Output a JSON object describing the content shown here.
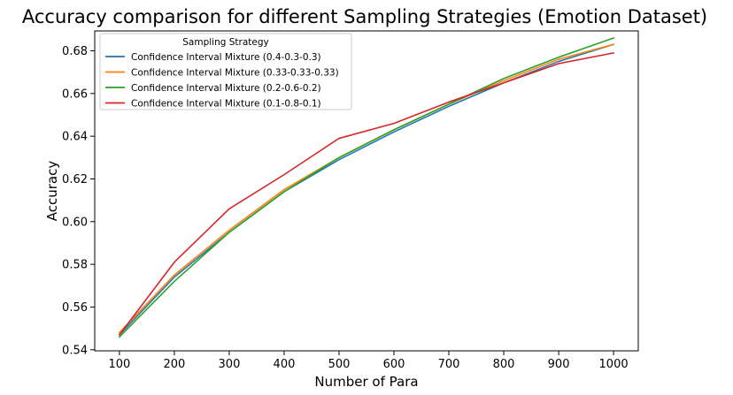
{
  "chart_data": {
    "type": "line",
    "title": "Accuracy comparison for different Sampling Strategies (Emotion Dataset)",
    "xlabel": "Number of Para",
    "ylabel": "Accuracy",
    "x": [
      100,
      200,
      300,
      400,
      500,
      600,
      700,
      800,
      900,
      1000
    ],
    "xticks": [
      "100",
      "200",
      "300",
      "400",
      "500",
      "600",
      "700",
      "800",
      "900",
      "1000"
    ],
    "yticks": [
      "0.54",
      "0.56",
      "0.58",
      "0.60",
      "0.62",
      "0.64",
      "0.66",
      "0.68"
    ],
    "xlim": [
      55,
      1045
    ],
    "ylim": [
      0.5395,
      0.6893
    ],
    "grid": false,
    "legend": {
      "title": "Sampling Strategy",
      "placement": "top-left"
    },
    "series": [
      {
        "name": "Confidence Interval Mixture (0.4-0.3-0.3)",
        "color": "#1f77b4",
        "values": [
          0.547,
          0.574,
          0.595,
          0.614,
          0.629,
          0.642,
          0.654,
          0.665,
          0.675,
          0.683
        ]
      },
      {
        "name": "Confidence Interval Mixture (0.33-0.33-0.33)",
        "color": "#ff7f0e",
        "values": [
          0.548,
          0.575,
          0.596,
          0.615,
          0.63,
          0.643,
          0.655,
          0.666,
          0.676,
          0.683
        ]
      },
      {
        "name": "Confidence Interval Mixture (0.2-0.6-0.2)",
        "color": "#2ca02c",
        "values": [
          0.546,
          0.572,
          0.595,
          0.614,
          0.63,
          0.643,
          0.655,
          0.667,
          0.677,
          0.686
        ]
      },
      {
        "name": "Confidence Interval Mixture (0.1-0.8-0.1)",
        "color": "#d62728",
        "values": [
          0.547,
          0.581,
          0.606,
          0.622,
          0.639,
          0.646,
          0.656,
          0.665,
          0.674,
          0.679
        ]
      }
    ]
  }
}
